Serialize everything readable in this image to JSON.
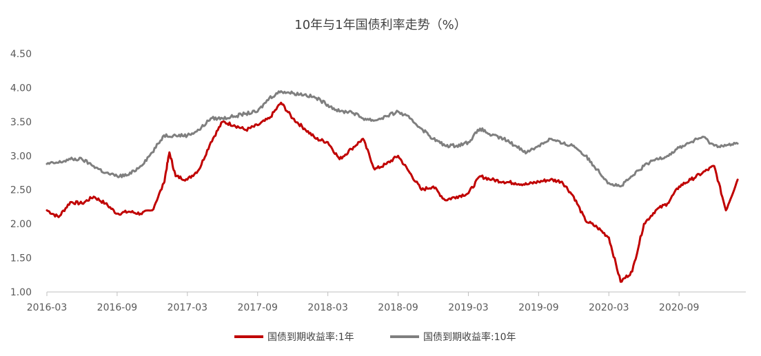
{
  "chart_data": {
    "type": "line",
    "title": "10年与1年国债利率走势（%）",
    "xlabel": "",
    "ylabel": "",
    "ylim": [
      1.0,
      4.5
    ],
    "yticks": [
      "1.00",
      "1.50",
      "2.00",
      "2.50",
      "3.00",
      "3.50",
      "4.00",
      "4.50"
    ],
    "xlim": [
      "2016-03",
      "2021-02"
    ],
    "xticks": [
      "2016-03",
      "2016-09",
      "2017-03",
      "2017-09",
      "2018-03",
      "2018-09",
      "2019-03",
      "2019-09",
      "2020-03",
      "2020-09"
    ],
    "grid": false,
    "legend_position": "bottom",
    "series": [
      {
        "name": "国债到期收益率:1年",
        "color": "#C00000",
        "points": [
          [
            "2016-03",
            2.2
          ],
          [
            "2016-04",
            2.1
          ],
          [
            "2016-05",
            2.32
          ],
          [
            "2016-06",
            2.3
          ],
          [
            "2016-07",
            2.4
          ],
          [
            "2016-08",
            2.3
          ],
          [
            "2016-09",
            2.15
          ],
          [
            "2016-10",
            2.18
          ],
          [
            "2016-11",
            2.15
          ],
          [
            "2016-12",
            2.2
          ],
          [
            "2017-01",
            2.6
          ],
          [
            "2017-01-15",
            3.05
          ],
          [
            "2017-02",
            2.7
          ],
          [
            "2017-03",
            2.65
          ],
          [
            "2017-04",
            2.8
          ],
          [
            "2017-05",
            3.2
          ],
          [
            "2017-06",
            3.5
          ],
          [
            "2017-07",
            3.45
          ],
          [
            "2017-08",
            3.38
          ],
          [
            "2017-09",
            3.45
          ],
          [
            "2017-10",
            3.55
          ],
          [
            "2017-11",
            3.78
          ],
          [
            "2017-12",
            3.55
          ],
          [
            "2018-01",
            3.4
          ],
          [
            "2018-02",
            3.25
          ],
          [
            "2018-03",
            3.2
          ],
          [
            "2018-04",
            2.95
          ],
          [
            "2018-05",
            3.1
          ],
          [
            "2018-06",
            3.25
          ],
          [
            "2018-07",
            2.8
          ],
          [
            "2018-08",
            2.88
          ],
          [
            "2018-09",
            3.0
          ],
          [
            "2018-10",
            2.75
          ],
          [
            "2018-11",
            2.5
          ],
          [
            "2018-12",
            2.55
          ],
          [
            "2019-01",
            2.35
          ],
          [
            "2019-02",
            2.4
          ],
          [
            "2019-03",
            2.45
          ],
          [
            "2019-04",
            2.7
          ],
          [
            "2019-05",
            2.65
          ],
          [
            "2019-06",
            2.62
          ],
          [
            "2019-07",
            2.6
          ],
          [
            "2019-08",
            2.58
          ],
          [
            "2019-09",
            2.62
          ],
          [
            "2019-10",
            2.65
          ],
          [
            "2019-11",
            2.62
          ],
          [
            "2019-12",
            2.4
          ],
          [
            "2020-01",
            2.05
          ],
          [
            "2020-02",
            1.95
          ],
          [
            "2020-03",
            1.8
          ],
          [
            "2020-04",
            1.15
          ],
          [
            "2020-05",
            1.3
          ],
          [
            "2020-06",
            2.0
          ],
          [
            "2020-07",
            2.2
          ],
          [
            "2020-08",
            2.3
          ],
          [
            "2020-09",
            2.55
          ],
          [
            "2020-10",
            2.65
          ],
          [
            "2020-11",
            2.75
          ],
          [
            "2020-12",
            2.85
          ],
          [
            "2021-01",
            2.2
          ],
          [
            "2021-02",
            2.65
          ]
        ]
      },
      {
        "name": "国债到期收益率:10年",
        "color": "#7F7F7F",
        "points": [
          [
            "2016-03",
            2.88
          ],
          [
            "2016-04",
            2.9
          ],
          [
            "2016-05",
            2.95
          ],
          [
            "2016-06",
            2.95
          ],
          [
            "2016-07",
            2.85
          ],
          [
            "2016-08",
            2.75
          ],
          [
            "2016-09",
            2.7
          ],
          [
            "2016-10",
            2.72
          ],
          [
            "2016-11",
            2.85
          ],
          [
            "2016-12",
            3.05
          ],
          [
            "2017-01",
            3.3
          ],
          [
            "2017-02",
            3.3
          ],
          [
            "2017-03",
            3.3
          ],
          [
            "2017-04",
            3.38
          ],
          [
            "2017-05",
            3.55
          ],
          [
            "2017-06",
            3.55
          ],
          [
            "2017-07",
            3.58
          ],
          [
            "2017-08",
            3.62
          ],
          [
            "2017-09",
            3.65
          ],
          [
            "2017-10",
            3.85
          ],
          [
            "2017-11",
            3.95
          ],
          [
            "2017-12",
            3.92
          ],
          [
            "2018-01",
            3.9
          ],
          [
            "2018-02",
            3.85
          ],
          [
            "2018-03",
            3.75
          ],
          [
            "2018-04",
            3.65
          ],
          [
            "2018-05",
            3.65
          ],
          [
            "2018-06",
            3.55
          ],
          [
            "2018-07",
            3.52
          ],
          [
            "2018-08",
            3.58
          ],
          [
            "2018-09",
            3.65
          ],
          [
            "2018-10",
            3.55
          ],
          [
            "2018-11",
            3.4
          ],
          [
            "2018-12",
            3.25
          ],
          [
            "2019-01",
            3.15
          ],
          [
            "2019-02",
            3.15
          ],
          [
            "2019-03",
            3.2
          ],
          [
            "2019-04",
            3.4
          ],
          [
            "2019-05",
            3.3
          ],
          [
            "2019-06",
            3.25
          ],
          [
            "2019-07",
            3.15
          ],
          [
            "2019-08",
            3.05
          ],
          [
            "2019-09",
            3.15
          ],
          [
            "2019-10",
            3.25
          ],
          [
            "2019-11",
            3.18
          ],
          [
            "2019-12",
            3.15
          ],
          [
            "2020-01",
            3.0
          ],
          [
            "2020-02",
            2.8
          ],
          [
            "2020-03",
            2.6
          ],
          [
            "2020-04",
            2.55
          ],
          [
            "2020-05",
            2.7
          ],
          [
            "2020-06",
            2.85
          ],
          [
            "2020-07",
            2.95
          ],
          [
            "2020-08",
            3.0
          ],
          [
            "2020-09",
            3.12
          ],
          [
            "2020-10",
            3.2
          ],
          [
            "2020-11",
            3.28
          ],
          [
            "2020-12",
            3.15
          ],
          [
            "2021-01",
            3.15
          ],
          [
            "2021-02",
            3.18
          ]
        ]
      }
    ]
  }
}
